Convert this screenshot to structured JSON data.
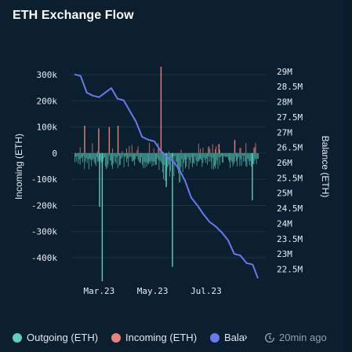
{
  "title": "ETH Exchange Flow",
  "footer": {
    "updated": "20min ago"
  },
  "legend": [
    {
      "label": "Outgoing (ETH)",
      "color": "#5fcfc0"
    },
    {
      "label": "Incoming (ETH)",
      "color": "#e8837a"
    },
    {
      "label": "Bala",
      "color": "#6a78f0"
    }
  ],
  "chart_data": {
    "type": "bar+line",
    "ylabel_left": "Incoming (ETH)",
    "ylabel_right": "Balance (ETH)",
    "x_ticks": [
      "Mar.23",
      "May.23",
      "Jul.23"
    ],
    "y_left_ticks": [
      "300k",
      "200k",
      "100k",
      "0",
      "-100k",
      "-200k",
      "-300k",
      "-400k"
    ],
    "y_left_range": [
      -490000,
      330000
    ],
    "y_right_ticks": [
      "29M",
      "28.5M",
      "28M",
      "27.5M",
      "27M",
      "26.5M",
      "26M",
      "25.5M",
      "25M",
      "24.5M",
      "24M",
      "23.5M",
      "23M",
      "22.5M"
    ],
    "y_right_range": [
      22100000,
      29150000
    ],
    "incoming_peaks": [
      {
        "date": "2023-02-12",
        "value": 105000
      },
      {
        "date": "2023-02-28",
        "value": 95000
      },
      {
        "date": "2023-03-12",
        "value": 100000
      },
      {
        "date": "2023-03-22",
        "value": 105000
      },
      {
        "date": "2023-05-10",
        "value": 330000
      },
      {
        "date": "2023-07-15",
        "value": 35000
      },
      {
        "date": "2023-08-02",
        "value": 50000
      }
    ],
    "outgoing_peaks": [
      {
        "date": "2023-03-01",
        "value": -205000
      },
      {
        "date": "2023-03-04",
        "value": -490000
      },
      {
        "date": "2023-05-16",
        "value": -130000
      },
      {
        "date": "2023-05-23",
        "value": -435000
      },
      {
        "date": "2023-08-22",
        "value": -180000
      }
    ],
    "balance_series": {
      "dates": [
        "2023-02-01",
        "2023-02-08",
        "2023-02-15",
        "2023-02-22",
        "2023-03-01",
        "2023-03-08",
        "2023-03-15",
        "2023-03-22",
        "2023-03-29",
        "2023-04-05",
        "2023-04-12",
        "2023-04-19",
        "2023-04-26",
        "2023-05-03",
        "2023-05-10",
        "2023-05-17",
        "2023-05-24",
        "2023-05-31",
        "2023-06-07",
        "2023-06-14",
        "2023-06-21",
        "2023-06-28",
        "2023-07-05",
        "2023-07-12",
        "2023-07-19",
        "2023-07-26",
        "2023-08-02",
        "2023-08-09",
        "2023-08-16",
        "2023-08-23",
        "2023-08-29"
      ],
      "values": [
        28900000,
        28850000,
        28300000,
        28200000,
        28150000,
        28300000,
        28450000,
        28100000,
        28050000,
        27700000,
        27350000,
        26850000,
        26750000,
        26700000,
        26400000,
        26200000,
        26050000,
        25800000,
        25400000,
        24850000,
        24600000,
        24300000,
        24050000,
        23900000,
        23700000,
        23450000,
        23000000,
        22950000,
        22700000,
        22650000,
        22200000
      ]
    }
  }
}
